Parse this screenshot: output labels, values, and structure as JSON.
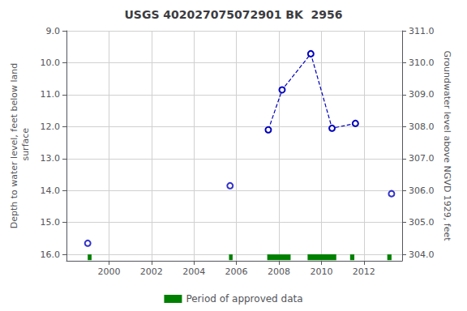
{
  "chart_data": {
    "type": "line",
    "title": "USGS 402027075072901 BK  2956",
    "ylabel": "Depth to water level, feet below land\n surface",
    "y2label": "Groundwater level above NGVD 1929, feet",
    "xlim": [
      1998.0,
      2013.8
    ],
    "xticks": [
      2000,
      2002,
      2004,
      2006,
      2008,
      2010,
      2012
    ],
    "ylim": [
      16.2,
      9.0
    ],
    "yticks": [
      {
        "value": 9.0,
        "label": "9.0"
      },
      {
        "value": 10.0,
        "label": "10.0"
      },
      {
        "value": 11.0,
        "label": "11.0"
      },
      {
        "value": 12.0,
        "label": "12.0"
      },
      {
        "value": 13.0,
        "label": "13.0"
      },
      {
        "value": 14.0,
        "label": "14.0"
      },
      {
        "value": 15.0,
        "label": "15.0"
      },
      {
        "value": 16.0,
        "label": "16.0"
      }
    ],
    "y2lim": [
      303.8,
      311.0
    ],
    "y2ticks": [
      {
        "value": 311.0,
        "label": "311.0"
      },
      {
        "value": 310.0,
        "label": "310.0"
      },
      {
        "value": 309.0,
        "label": "309.0"
      },
      {
        "value": 308.0,
        "label": "308.0"
      },
      {
        "value": 307.0,
        "label": "307.0"
      },
      {
        "value": 306.0,
        "label": "306.0"
      },
      {
        "value": 305.0,
        "label": "305.0"
      },
      {
        "value": 304.0,
        "label": "304.0"
      }
    ],
    "grid": true,
    "legend": "bottom",
    "series": [
      {
        "type": "line",
        "line_style": "dashed",
        "marker": "circle",
        "color": "#0000bb",
        "x": [
          2007.5,
          2008.15,
          2009.5,
          2010.5,
          2011.6
        ],
        "values": [
          12.1,
          10.85,
          9.72,
          12.05,
          11.9
        ]
      },
      {
        "type": "scatter",
        "marker": "circle",
        "color": "#0000bb",
        "x": [
          1999.0,
          2005.7,
          2013.3
        ],
        "values": [
          15.65,
          13.85,
          14.1
        ]
      },
      {
        "type": "span",
        "name": "Period of approved data",
        "color": "#008000",
        "periods": [
          [
            1999.0,
            1999.18
          ],
          [
            2005.65,
            2005.82
          ],
          [
            2007.45,
            2008.55
          ],
          [
            2009.35,
            2010.7
          ],
          [
            2011.35,
            2011.55
          ],
          [
            2013.1,
            2013.3
          ]
        ],
        "y_range": [
          16.0,
          16.18
        ]
      }
    ]
  }
}
